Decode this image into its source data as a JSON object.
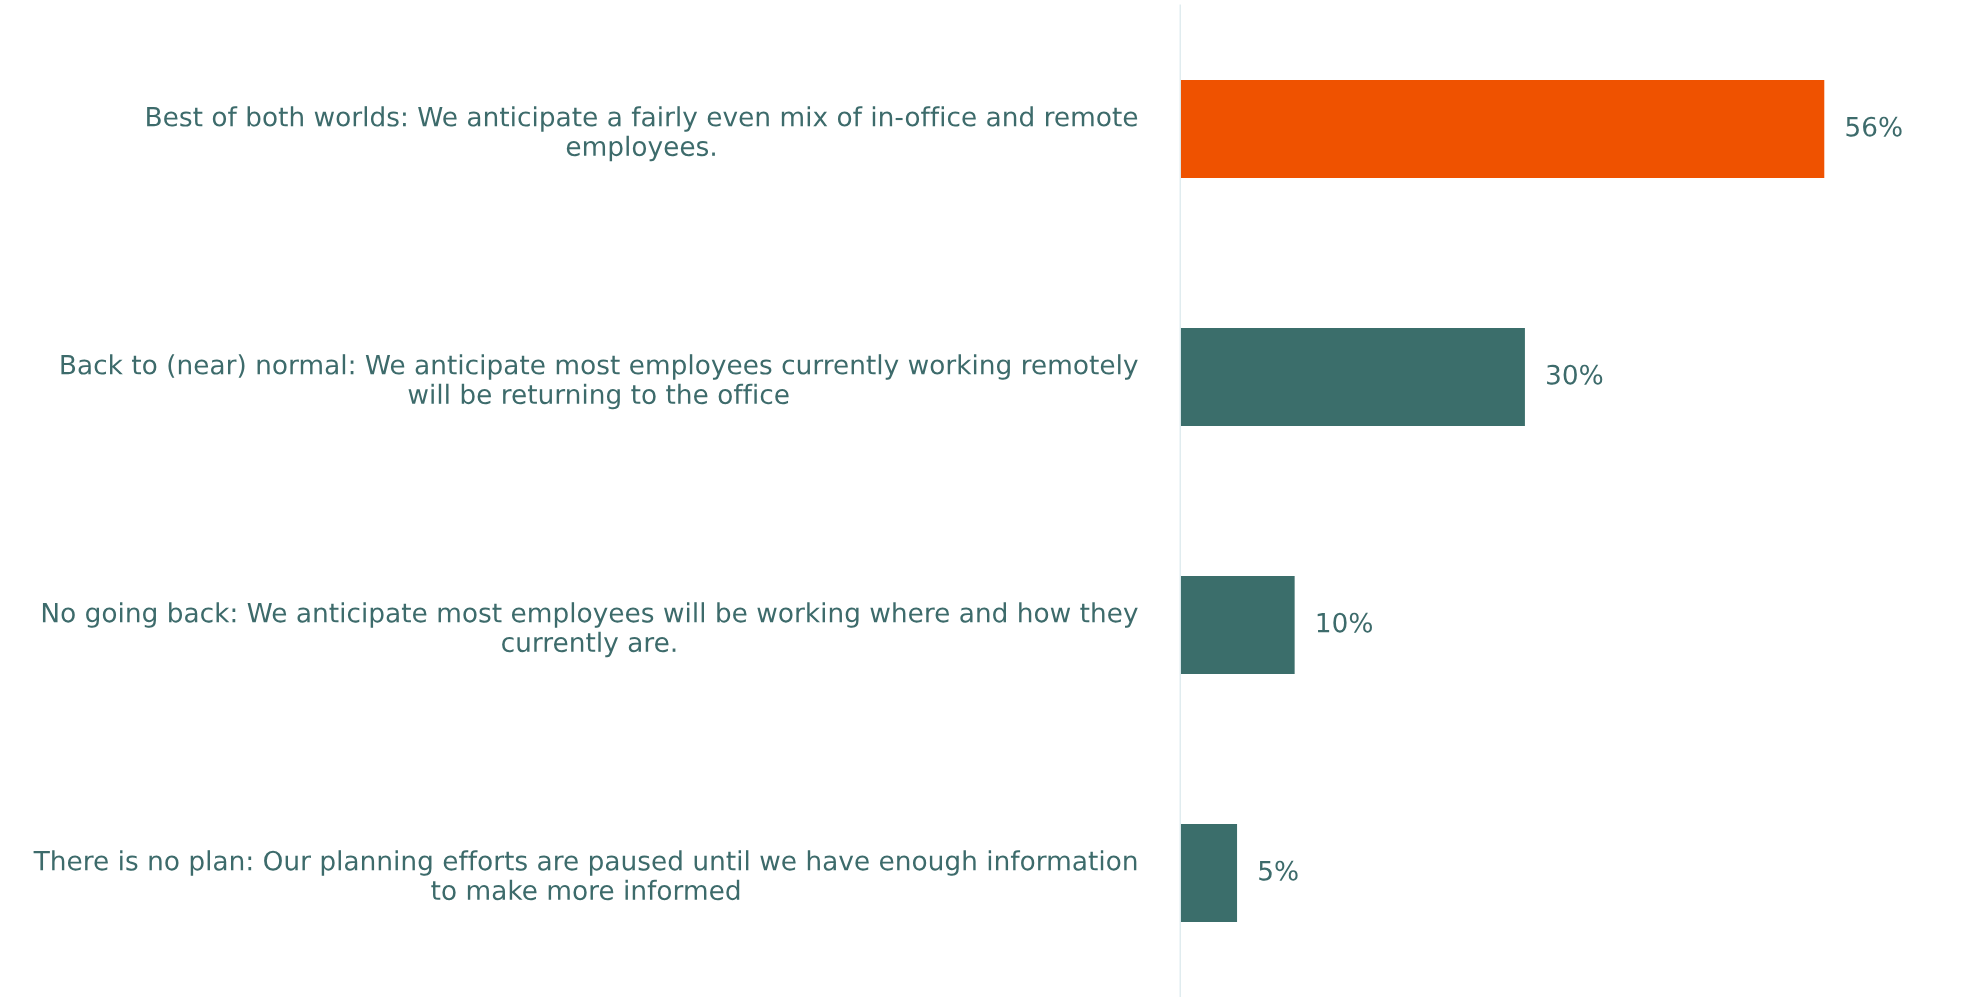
{
  "chart_data": {
    "type": "bar",
    "orientation": "horizontal",
    "categories": [
      "Best of both worlds: We anticipate a fairly even mix of in-office and remote\nemployees.",
      "Back to (near) normal: We anticipate most employees currently working remotely\nwill be returning to the office",
      "No going back: We anticipate most employees will be working where and how they\ncurrently are.",
      "There is no plan: Our planning efforts are paused until we have enough information\nto make more informed"
    ],
    "values": [
      56,
      30,
      10,
      5
    ],
    "colors": [
      "#ef5200",
      "#3b6e6b",
      "#3b6e6b",
      "#3b6e6b"
    ],
    "value_labels": [
      "56%",
      "30%",
      "10%",
      "5%"
    ],
    "grid": false,
    "legend": false
  }
}
